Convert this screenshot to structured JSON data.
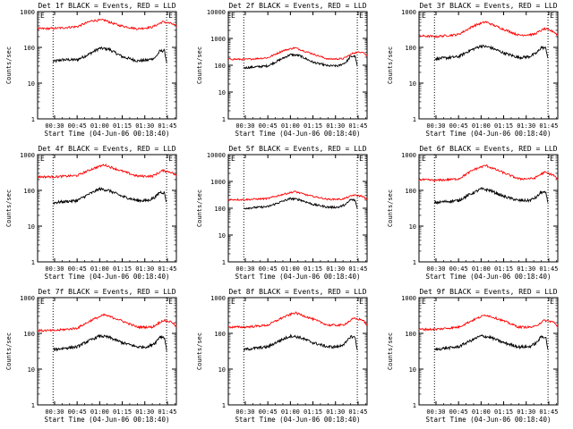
{
  "chart_data": [
    {
      "type": "line",
      "detector": "1f",
      "title": "Det 1f BLACK = Events, RED = LLD",
      "ylabel": "Counts/sec",
      "xlabel": "Start Time (04-Jun-06 00:18:40)",
      "yscale": "log",
      "ylim": [
        1,
        1000
      ],
      "yticks": [
        "1",
        "10",
        "100",
        "1000"
      ],
      "xticks": [
        "00:30",
        "00:45",
        "01:00",
        "01:15",
        "01:30",
        "01:45"
      ],
      "xlim_minutes": [
        18.7,
        111
      ],
      "marker_lines_minutes": [
        29,
        104.5
      ],
      "marker_labels": [
        "E",
        "E"
      ],
      "series": [
        {
          "name": "Events",
          "color": "#000000",
          "x_minutes": [
            29,
            35,
            45,
            52,
            60,
            66,
            75,
            85,
            92,
            97,
            100,
            103,
            104.5
          ],
          "values": [
            40,
            45,
            45,
            62,
            95,
            90,
            55,
            42,
            44,
            52,
            78,
            82,
            40
          ]
        },
        {
          "name": "LLD",
          "color": "#ff0000",
          "x_minutes": [
            18.7,
            30,
            45,
            55,
            63,
            72,
            85,
            95,
            102,
            108,
            111
          ],
          "values": [
            330,
            340,
            380,
            560,
            580,
            420,
            330,
            370,
            520,
            460,
            380
          ]
        }
      ]
    },
    {
      "type": "line",
      "detector": "2f",
      "title": "Det 2f BLACK = Events, RED = LLD",
      "ylabel": "Counts/sec",
      "xlabel": "Start Time (04-Jun-06 00:18:40)",
      "yscale": "log",
      "ylim": [
        1,
        10000
      ],
      "yticks": [
        "1",
        "10",
        "100",
        "1000",
        "10000"
      ],
      "xticks": [
        "00:30",
        "00:45",
        "01:00",
        "01:15",
        "01:30",
        "01:45"
      ],
      "xlim_minutes": [
        18.7,
        111
      ],
      "marker_lines_minutes": [
        29,
        104.5
      ],
      "marker_labels": [
        "E",
        "E"
      ],
      "series": [
        {
          "name": "Events",
          "color": "#000000",
          "x_minutes": [
            29,
            35,
            45,
            52,
            60,
            66,
            75,
            85,
            92,
            97,
            100,
            103,
            104.5
          ],
          "values": [
            80,
            85,
            95,
            150,
            250,
            230,
            130,
            95,
            95,
            130,
            210,
            220,
            90
          ]
        },
        {
          "name": "LLD",
          "color": "#ff0000",
          "x_minutes": [
            18.7,
            30,
            45,
            55,
            63,
            72,
            85,
            95,
            102,
            108,
            111
          ],
          "values": [
            170,
            165,
            190,
            350,
            450,
            300,
            170,
            175,
            290,
            320,
            220
          ]
        }
      ]
    },
    {
      "type": "line",
      "detector": "3f",
      "title": "Det 3f BLACK = Events, RED = LLD",
      "ylabel": "Counts/sec",
      "xlabel": "Start Time (04-Jun-06 00:18:40)",
      "yscale": "log",
      "ylim": [
        1,
        1000
      ],
      "yticks": [
        "1",
        "10",
        "100",
        "1000"
      ],
      "xticks": [
        "00:30",
        "00:45",
        "01:00",
        "01:15",
        "01:30",
        "01:45"
      ],
      "xlim_minutes": [
        18.7,
        111
      ],
      "marker_lines_minutes": [
        29,
        104.5
      ],
      "marker_labels": [
        "E",
        "E"
      ],
      "series": [
        {
          "name": "Events",
          "color": "#000000",
          "x_minutes": [
            29,
            35,
            45,
            52,
            60,
            66,
            75,
            85,
            92,
            97,
            100,
            103,
            104.5
          ],
          "values": [
            48,
            50,
            55,
            80,
            110,
            100,
            70,
            52,
            55,
            70,
            100,
            95,
            50
          ]
        },
        {
          "name": "LLD",
          "color": "#ff0000",
          "x_minutes": [
            18.7,
            30,
            45,
            55,
            63,
            72,
            85,
            95,
            102,
            108,
            111
          ],
          "values": [
            210,
            200,
            230,
            400,
            520,
            360,
            220,
            230,
            330,
            280,
            220
          ]
        }
      ]
    },
    {
      "type": "line",
      "detector": "4f",
      "title": "Det 4f BLACK = Events, RED = LLD",
      "ylabel": "Counts/sec",
      "xlabel": "Start Time (04-Jun-06 00:18:40)",
      "yscale": "log",
      "ylim": [
        1,
        1000
      ],
      "yticks": [
        "1",
        "10",
        "100",
        "1000"
      ],
      "xticks": [
        "00:30",
        "00:45",
        "01:00",
        "01:15",
        "01:30",
        "01:45"
      ],
      "xlim_minutes": [
        18.7,
        111
      ],
      "marker_lines_minutes": [
        29,
        104.5
      ],
      "marker_labels": [
        "E",
        "E"
      ],
      "series": [
        {
          "name": "Events",
          "color": "#000000",
          "x_minutes": [
            29,
            35,
            45,
            52,
            60,
            66,
            75,
            85,
            92,
            97,
            100,
            103,
            104.5
          ],
          "values": [
            45,
            48,
            52,
            75,
            110,
            100,
            68,
            52,
            52,
            65,
            90,
            85,
            45
          ]
        },
        {
          "name": "LLD",
          "color": "#ff0000",
          "x_minutes": [
            18.7,
            30,
            45,
            55,
            63,
            72,
            85,
            95,
            102,
            108,
            111
          ],
          "values": [
            240,
            240,
            260,
            400,
            520,
            380,
            250,
            250,
            360,
            320,
            250
          ]
        }
      ]
    },
    {
      "type": "line",
      "detector": "5f",
      "title": "Det 5f BLACK = Events, RED = LLD",
      "ylabel": "Counts/sec",
      "xlabel": "Start Time (04-Jun-06 00:18:40)",
      "yscale": "log",
      "ylim": [
        1,
        10000
      ],
      "yticks": [
        "1",
        "10",
        "100",
        "1000",
        "10000"
      ],
      "xticks": [
        "00:30",
        "00:45",
        "01:00",
        "01:15",
        "01:30",
        "01:45"
      ],
      "xlim_minutes": [
        18.7,
        111
      ],
      "marker_lines_minutes": [
        29,
        104.5
      ],
      "marker_labels": [
        "E",
        "E"
      ],
      "series": [
        {
          "name": "Events",
          "color": "#000000",
          "x_minutes": [
            29,
            35,
            45,
            52,
            60,
            66,
            75,
            85,
            92,
            97,
            100,
            103,
            104.5
          ],
          "values": [
            100,
            105,
            115,
            160,
            230,
            210,
            140,
            110,
            110,
            140,
            210,
            200,
            100
          ]
        },
        {
          "name": "LLD",
          "color": "#ff0000",
          "x_minutes": [
            18.7,
            30,
            45,
            55,
            63,
            72,
            85,
            95,
            102,
            108,
            111
          ],
          "values": [
            210,
            210,
            230,
            330,
            420,
            300,
            215,
            220,
            310,
            280,
            210
          ]
        }
      ]
    },
    {
      "type": "line",
      "detector": "6f",
      "title": "Det 6f BLACK = Events, RED = LLD",
      "ylabel": "Counts/sec",
      "xlabel": "Start Time (04-Jun-06 00:18:40)",
      "yscale": "log",
      "ylim": [
        1,
        1000
      ],
      "yticks": [
        "1",
        "10",
        "100",
        "1000"
      ],
      "xticks": [
        "00:30",
        "00:45",
        "01:00",
        "01:15",
        "01:30",
        "01:45"
      ],
      "xlim_minutes": [
        18.7,
        111
      ],
      "marker_lines_minutes": [
        29,
        104.5
      ],
      "marker_labels": [
        "E",
        "E"
      ],
      "series": [
        {
          "name": "Events",
          "color": "#000000",
          "x_minutes": [
            29,
            35,
            45,
            52,
            60,
            66,
            75,
            85,
            92,
            97,
            100,
            103,
            104.5
          ],
          "values": [
            45,
            48,
            52,
            75,
            110,
            100,
            68,
            52,
            52,
            65,
            90,
            85,
            45
          ]
        },
        {
          "name": "LLD",
          "color": "#ff0000",
          "x_minutes": [
            18.7,
            30,
            45,
            55,
            63,
            72,
            85,
            95,
            102,
            108,
            111
          ],
          "values": [
            200,
            190,
            210,
            380,
            500,
            350,
            210,
            215,
            320,
            270,
            200
          ]
        }
      ]
    },
    {
      "type": "line",
      "detector": "7f",
      "title": "Det 7f BLACK = Events, RED = LLD",
      "ylabel": "Counts/sec",
      "xlabel": "Start Time (04-Jun-06 00:18:40)",
      "yscale": "log",
      "ylim": [
        1,
        1000
      ],
      "yticks": [
        "1",
        "10",
        "100",
        "1000"
      ],
      "xticks": [
        "00:30",
        "00:45",
        "01:00",
        "01:15",
        "01:30",
        "01:45"
      ],
      "xlim_minutes": [
        18.7,
        111
      ],
      "marker_lines_minutes": [
        29,
        104.5
      ],
      "marker_labels": [
        "E",
        "E"
      ],
      "series": [
        {
          "name": "Events",
          "color": "#000000",
          "x_minutes": [
            29,
            35,
            45,
            52,
            60,
            66,
            75,
            85,
            92,
            97,
            100,
            103,
            104.5
          ],
          "values": [
            35,
            38,
            42,
            60,
            85,
            78,
            55,
            42,
            42,
            55,
            82,
            78,
            35
          ]
        },
        {
          "name": "LLD",
          "color": "#ff0000",
          "x_minutes": [
            18.7,
            30,
            45,
            55,
            63,
            72,
            85,
            95,
            102,
            108,
            111
          ],
          "values": [
            120,
            120,
            140,
            240,
            330,
            250,
            150,
            150,
            230,
            210,
            150
          ]
        }
      ]
    },
    {
      "type": "line",
      "detector": "8f",
      "title": "Det 8f BLACK = Events, RED = LLD",
      "ylabel": "Counts/sec",
      "xlabel": "Start Time (04-Jun-06 00:18:40)",
      "yscale": "log",
      "ylim": [
        1,
        1000
      ],
      "yticks": [
        "1",
        "10",
        "100",
        "1000"
      ],
      "xticks": [
        "00:30",
        "00:45",
        "01:00",
        "01:15",
        "01:30",
        "01:45"
      ],
      "xlim_minutes": [
        18.7,
        111
      ],
      "marker_lines_minutes": [
        29,
        104.5
      ],
      "marker_labels": [
        "E",
        "E"
      ],
      "series": [
        {
          "name": "Events",
          "color": "#000000",
          "x_minutes": [
            29,
            35,
            45,
            52,
            60,
            66,
            75,
            85,
            92,
            97,
            100,
            103,
            104.5
          ],
          "values": [
            35,
            38,
            42,
            60,
            85,
            78,
            55,
            42,
            42,
            55,
            82,
            78,
            35
          ]
        },
        {
          "name": "LLD",
          "color": "#ff0000",
          "x_minutes": [
            18.7,
            30,
            45,
            55,
            63,
            72,
            85,
            95,
            102,
            108,
            111
          ],
          "values": [
            150,
            150,
            170,
            280,
            380,
            280,
            170,
            170,
            260,
            240,
            170
          ]
        }
      ]
    },
    {
      "type": "line",
      "detector": "9f",
      "title": "Det 9f BLACK = Events, RED = LLD",
      "ylabel": "Counts/sec",
      "xlabel": "Start Time (04-Jun-06 00:18:40)",
      "yscale": "log",
      "ylim": [
        1,
        1000
      ],
      "yticks": [
        "1",
        "10",
        "100",
        "1000"
      ],
      "xticks": [
        "00:30",
        "00:45",
        "01:00",
        "01:15",
        "01:30",
        "01:45"
      ],
      "xlim_minutes": [
        18.7,
        111
      ],
      "marker_lines_minutes": [
        29,
        104.5
      ],
      "marker_labels": [
        "E",
        "E"
      ],
      "series": [
        {
          "name": "Events",
          "color": "#000000",
          "x_minutes": [
            29,
            35,
            45,
            52,
            60,
            66,
            75,
            85,
            92,
            97,
            100,
            103,
            104.5
          ],
          "values": [
            35,
            38,
            42,
            60,
            85,
            78,
            55,
            42,
            42,
            55,
            82,
            78,
            35
          ]
        },
        {
          "name": "LLD",
          "color": "#ff0000",
          "x_minutes": [
            18.7,
            30,
            45,
            55,
            63,
            72,
            85,
            95,
            102,
            108,
            111
          ],
          "values": [
            130,
            130,
            150,
            240,
            330,
            250,
            150,
            150,
            230,
            210,
            150
          ]
        }
      ]
    }
  ]
}
